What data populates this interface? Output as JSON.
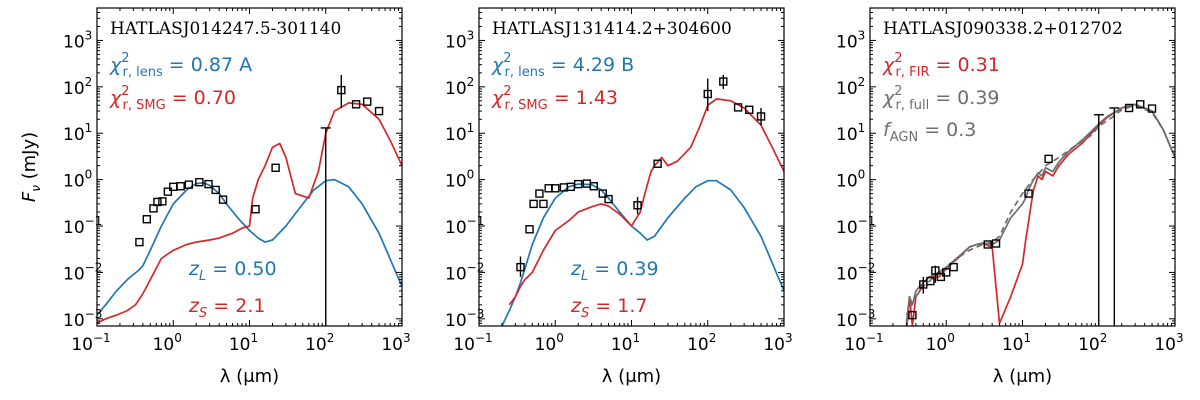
{
  "colors": {
    "lens": "#1f77b4",
    "smg": "#d62728",
    "full": "#6e6e6e",
    "axis": "#000000"
  },
  "chart_data": [
    {
      "type": "line",
      "title": "HATLASJ014247.5-301140",
      "xlabel": "λ (μm)",
      "ylabel": "F",
      "ylabel_sub": "ν",
      "ylabel_unit": "(mJy)",
      "xscale": "log",
      "yscale": "log",
      "xlim": [
        0.1,
        1000
      ],
      "ylim": [
        0.0007,
        5000
      ],
      "xticks": [
        {
          "base": "10",
          "exp": "−1"
        },
        {
          "base": "10",
          "exp": "0"
        },
        {
          "base": "10",
          "exp": "1"
        },
        {
          "base": "10",
          "exp": "2"
        },
        {
          "base": "10",
          "exp": "3"
        }
      ],
      "yticks": [
        {
          "base": "10",
          "exp": "−3"
        },
        {
          "base": "10",
          "exp": "−2"
        },
        {
          "base": "10",
          "exp": "−1"
        },
        {
          "base": "10",
          "exp": "0"
        },
        {
          "base": "10",
          "exp": "1"
        },
        {
          "base": "10",
          "exp": "2"
        },
        {
          "base": "10",
          "exp": "3"
        }
      ],
      "annotations": {
        "line1": {
          "chi": "χ",
          "exp": "2",
          "sub": "r, lens",
          "eq": " =  0.87  A",
          "color": "lens"
        },
        "line2": {
          "chi": "χ",
          "exp": "2",
          "sub": "r, SMG",
          "eq": " =  0.70",
          "color": "smg"
        },
        "line3": null,
        "zl": {
          "sym": "z",
          "sub": "L",
          "eq": " = 0.50",
          "color": "lens"
        },
        "zs": {
          "sym": "z",
          "sub": "S",
          "eq": " = 2.1",
          "color": "smg"
        }
      },
      "series": [
        {
          "name": "lens",
          "color": "lens",
          "dashed": false,
          "x": [
            0.1,
            0.13,
            0.18,
            0.25,
            0.3,
            0.35,
            0.4,
            0.5,
            0.7,
            1,
            1.5,
            2,
            2.5,
            3,
            4,
            5,
            7,
            10,
            13,
            16,
            20,
            30,
            50,
            70,
            100,
            130,
            200,
            300,
            500,
            1000
          ],
          "y": [
            0.0012,
            0.002,
            0.004,
            0.007,
            0.009,
            0.011,
            0.014,
            0.03,
            0.1,
            0.3,
            0.6,
            0.82,
            0.85,
            0.75,
            0.5,
            0.3,
            0.15,
            0.08,
            0.055,
            0.045,
            0.05,
            0.1,
            0.3,
            0.6,
            0.95,
            1.0,
            0.7,
            0.3,
            0.07,
            0.005
          ]
        },
        {
          "name": "SMG",
          "color": "smg",
          "dashed": false,
          "x": [
            0.1,
            0.13,
            0.18,
            0.25,
            0.32,
            0.4,
            0.5,
            0.7,
            1,
            1.5,
            2,
            3,
            4,
            6,
            8,
            10,
            11,
            13,
            16,
            20,
            25,
            30,
            40,
            60,
            80,
            100,
            130,
            200,
            300,
            500,
            700,
            1000
          ],
          "y": [
            0.0008,
            0.001,
            0.0012,
            0.0015,
            0.002,
            0.0035,
            0.007,
            0.02,
            0.03,
            0.04,
            0.045,
            0.05,
            0.055,
            0.07,
            0.09,
            0.1,
            0.4,
            1.0,
            2.0,
            5.0,
            6.0,
            3.0,
            0.5,
            0.4,
            1.5,
            10,
            30,
            45,
            42,
            20,
            7,
            2
          ]
        }
      ],
      "points": {
        "x": [
          0.36,
          0.45,
          0.55,
          0.62,
          0.72,
          0.85,
          1.0,
          1.25,
          1.6,
          2.2,
          2.9,
          3.6,
          4.5,
          12,
          22,
          160,
          250,
          350,
          500
        ],
        "y": [
          0.045,
          0.14,
          0.24,
          0.33,
          0.34,
          0.55,
          0.7,
          0.72,
          0.78,
          0.88,
          0.8,
          0.6,
          0.37,
          0.23,
          1.8,
          85,
          42,
          48,
          30
        ],
        "err_lo": [
          null,
          null,
          null,
          null,
          null,
          null,
          null,
          null,
          null,
          null,
          null,
          null,
          null,
          null,
          null,
          35,
          null,
          null,
          null
        ],
        "err_hi": [
          null,
          null,
          null,
          null,
          null,
          null,
          null,
          null,
          null,
          null,
          null,
          null,
          null,
          null,
          null,
          180,
          null,
          null,
          null
        ]
      },
      "upper_limits": [
        {
          "x": 100,
          "y": 13
        }
      ]
    },
    {
      "type": "line",
      "title": "HATLASJ131414.2+304600",
      "xlabel": "λ (μm)",
      "xscale": "log",
      "yscale": "log",
      "xlim": [
        0.1,
        1000
      ],
      "ylim": [
        0.0007,
        5000
      ],
      "xticks": [
        {
          "base": "10",
          "exp": "−1"
        },
        {
          "base": "10",
          "exp": "0"
        },
        {
          "base": "10",
          "exp": "1"
        },
        {
          "base": "10",
          "exp": "2"
        },
        {
          "base": "10",
          "exp": "3"
        }
      ],
      "yticks": [
        {
          "base": "10",
          "exp": "−3"
        },
        {
          "base": "10",
          "exp": "−2"
        },
        {
          "base": "10",
          "exp": "−1"
        },
        {
          "base": "10",
          "exp": "0"
        },
        {
          "base": "10",
          "exp": "1"
        },
        {
          "base": "10",
          "exp": "2"
        },
        {
          "base": "10",
          "exp": "3"
        }
      ],
      "annotations": {
        "line1": {
          "chi": "χ",
          "exp": "2",
          "sub": "r, lens",
          "eq": " =  4.29  B",
          "color": "lens"
        },
        "line2": {
          "chi": "χ",
          "exp": "2",
          "sub": "r, SMG",
          "eq": " =  1.43",
          "color": "smg"
        },
        "line3": null,
        "zl": {
          "sym": "z",
          "sub": "L",
          "eq": " = 0.39",
          "color": "lens"
        },
        "zs": {
          "sym": "z",
          "sub": "S",
          "eq": " = 1.7",
          "color": "smg"
        }
      },
      "series": [
        {
          "name": "lens",
          "color": "lens",
          "dashed": false,
          "x": [
            0.2,
            0.25,
            0.3,
            0.35,
            0.4,
            0.5,
            0.7,
            1,
            1.5,
            2,
            3,
            4,
            5,
            7,
            10,
            13,
            16,
            20,
            30,
            50,
            70,
            100,
            130,
            200,
            300,
            500,
            1000
          ],
          "y": [
            0.0007,
            0.0015,
            0.003,
            0.006,
            0.012,
            0.04,
            0.15,
            0.4,
            0.7,
            0.8,
            0.78,
            0.6,
            0.4,
            0.2,
            0.1,
            0.07,
            0.05,
            0.06,
            0.15,
            0.4,
            0.7,
            0.95,
            0.95,
            0.6,
            0.25,
            0.06,
            0.004
          ]
        },
        {
          "name": "SMG",
          "color": "smg",
          "dashed": false,
          "x": [
            0.25,
            0.3,
            0.35,
            0.4,
            0.5,
            0.7,
            1,
            1.5,
            2,
            3,
            4,
            5,
            7,
            10,
            13,
            15,
            18,
            20,
            25,
            30,
            40,
            60,
            80,
            100,
            130,
            200,
            300,
            500,
            700,
            1000
          ],
          "y": [
            0.002,
            0.003,
            0.005,
            0.007,
            0.01,
            0.03,
            0.08,
            0.13,
            0.2,
            0.26,
            0.3,
            0.27,
            0.18,
            0.1,
            0.2,
            0.5,
            1.5,
            2.0,
            3.0,
            2.0,
            2.5,
            5,
            15,
            40,
            55,
            50,
            35,
            15,
            5,
            1.5
          ]
        }
      ],
      "points": {
        "x": [
          0.35,
          0.46,
          0.52,
          0.62,
          0.7,
          0.82,
          1.0,
          1.3,
          1.6,
          2.0,
          2.6,
          3.2,
          4.2,
          5.0,
          12,
          22,
          100,
          160,
          250,
          350,
          500
        ],
        "y": [
          0.013,
          0.085,
          0.3,
          0.5,
          0.3,
          0.65,
          0.65,
          0.68,
          0.7,
          0.8,
          0.82,
          0.72,
          0.5,
          0.38,
          0.28,
          2.2,
          70,
          130,
          36,
          32,
          23
        ],
        "err_lo": [
          0.008,
          null,
          null,
          null,
          null,
          null,
          null,
          null,
          null,
          null,
          null,
          null,
          null,
          null,
          0.18,
          null,
          30,
          90,
          null,
          null,
          15
        ],
        "err_hi": [
          0.022,
          null,
          null,
          null,
          null,
          null,
          null,
          null,
          null,
          null,
          null,
          null,
          null,
          null,
          0.42,
          null,
          150,
          180,
          null,
          null,
          35
        ]
      },
      "upper_limits": []
    },
    {
      "type": "line",
      "title": "HATLASJ090338.2+012702",
      "xlabel": "λ (μm)",
      "xscale": "log",
      "yscale": "log",
      "xlim": [
        0.1,
        1000
      ],
      "ylim": [
        0.0007,
        5000
      ],
      "xticks": [
        {
          "base": "10",
          "exp": "−1"
        },
        {
          "base": "10",
          "exp": "0"
        },
        {
          "base": "10",
          "exp": "1"
        },
        {
          "base": "10",
          "exp": "2"
        },
        {
          "base": "10",
          "exp": "3"
        }
      ],
      "yticks": [
        {
          "base": "10",
          "exp": "−3"
        },
        {
          "base": "10",
          "exp": "−2"
        },
        {
          "base": "10",
          "exp": "−1"
        },
        {
          "base": "10",
          "exp": "0"
        },
        {
          "base": "10",
          "exp": "1"
        },
        {
          "base": "10",
          "exp": "2"
        },
        {
          "base": "10",
          "exp": "3"
        }
      ],
      "annotations": {
        "line1": {
          "chi": "χ",
          "exp": "2",
          "sub": "r, FIR",
          "eq": " =  0.31",
          "color": "smg"
        },
        "line2": {
          "chi": "χ",
          "exp": "2",
          "sub": "r, full",
          "eq": " =  0.39",
          "color": "full"
        },
        "line3": {
          "chi": "f",
          "exp": "",
          "sub": "AGN",
          "eq": " =  0.3",
          "color": "full"
        },
        "zl": null,
        "zs": null
      },
      "series": [
        {
          "name": "FIR",
          "color": "smg",
          "dashed": false,
          "x": [
            0.3,
            0.33,
            0.36,
            0.4,
            0.45,
            0.5,
            0.6,
            0.8,
            1,
            1.5,
            2,
            2.5,
            3,
            4,
            5,
            7,
            10,
            11,
            12,
            13,
            14,
            16,
            18,
            20,
            25,
            30,
            40,
            60,
            80,
            100,
            130,
            200,
            300,
            500,
            700,
            1000
          ],
          "y": [
            0.0005,
            0.003,
            0.0007,
            0.003,
            0.004,
            0.006,
            0.008,
            0.008,
            0.012,
            0.022,
            0.035,
            0.04,
            0.042,
            0.035,
            0.0008,
            0.003,
            0.015,
            0.05,
            0.12,
            0.3,
            0.6,
            1.2,
            1.0,
            1.5,
            1.2,
            2.0,
            3.5,
            6,
            10,
            15,
            22,
            35,
            42,
            30,
            12,
            3
          ]
        },
        {
          "name": "full",
          "color": "full",
          "dashed": false,
          "x": [
            0.3,
            0.33,
            0.36,
            0.4,
            0.45,
            0.5,
            0.6,
            0.8,
            1,
            1.5,
            2,
            2.5,
            3,
            4,
            5,
            7,
            10,
            11,
            12,
            13,
            14,
            16,
            18,
            20,
            25,
            30,
            40,
            60,
            80,
            100,
            130,
            200,
            300,
            500,
            700,
            1000
          ],
          "y": [
            0.0008,
            0.003,
            0.002,
            0.004,
            0.005,
            0.006,
            0.008,
            0.01,
            0.013,
            0.023,
            0.035,
            0.04,
            0.043,
            0.04,
            0.05,
            0.15,
            0.3,
            0.4,
            0.6,
            0.8,
            1.0,
            1.4,
            1.2,
            1.8,
            1.5,
            2.4,
            4,
            7,
            11,
            16,
            23,
            35,
            42,
            30,
            12,
            3
          ]
        },
        {
          "name": "AGN",
          "color": "full",
          "dashed": true,
          "x": [
            0.3,
            0.35,
            0.4,
            0.5,
            0.7,
            1,
            1.5,
            2,
            3,
            4,
            5,
            7,
            10,
            13,
            16,
            20,
            30,
            50,
            80,
            100,
            150,
            200,
            300,
            500,
            700,
            1000
          ],
          "y": [
            0.0012,
            0.002,
            0.003,
            0.005,
            0.008,
            0.012,
            0.022,
            0.03,
            0.04,
            0.045,
            0.06,
            0.2,
            0.5,
            0.9,
            1.3,
            2.0,
            3.0,
            5.5,
            9,
            14,
            22,
            32,
            40,
            28,
            12,
            3
          ]
        }
      ],
      "points": {
        "x": [
          0.36,
          0.5,
          0.62,
          0.72,
          0.85,
          1.0,
          1.25,
          3.5,
          4.5,
          12,
          22,
          250,
          350,
          500
        ],
        "y": [
          0.0012,
          0.0055,
          0.0065,
          0.011,
          0.008,
          0.01,
          0.013,
          0.04,
          0.042,
          0.5,
          2.8,
          35,
          42,
          34
        ],
        "err_lo": [
          null,
          0.0035,
          null,
          0.006,
          null,
          null,
          null,
          null,
          null,
          null,
          null,
          null,
          null,
          null
        ],
        "err_hi": [
          null,
          0.008,
          null,
          0.014,
          null,
          null,
          null,
          null,
          null,
          null,
          null,
          null,
          null,
          null
        ]
      },
      "upper_limits": [
        {
          "x": 100,
          "y": 25
        },
        {
          "x": 160,
          "y": 35
        }
      ]
    }
  ]
}
